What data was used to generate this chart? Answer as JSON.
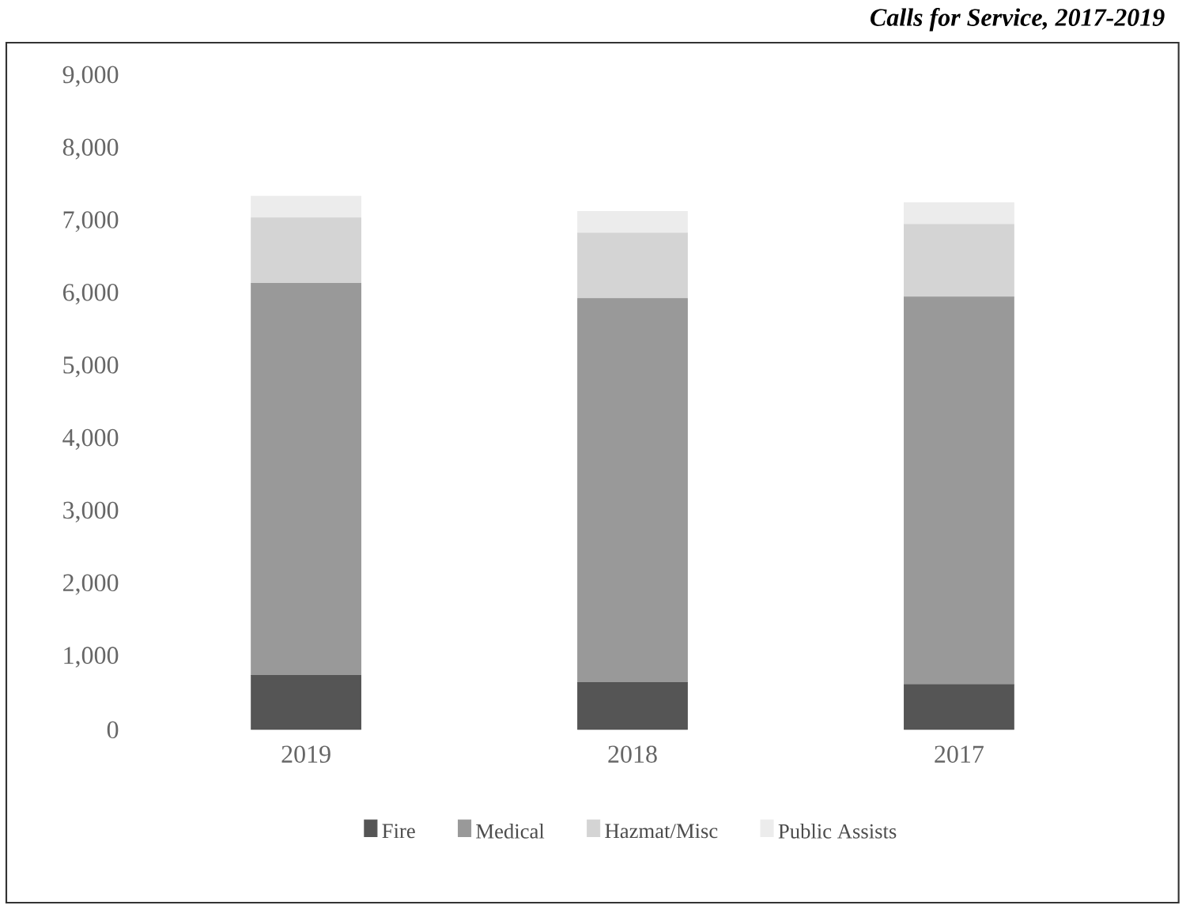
{
  "chart_data": {
    "type": "bar",
    "stacked": true,
    "title": "Calls for Service, 2017-2019",
    "categories": [
      "2019",
      "2018",
      "2017"
    ],
    "series": [
      {
        "name": "Fire",
        "color": "#555555",
        "values": [
          750,
          650,
          620
        ]
      },
      {
        "name": "Medical",
        "color": "#999999",
        "values": [
          5400,
          5290,
          5340
        ]
      },
      {
        "name": "Hazmat/Misc",
        "color": "#d4d4d4",
        "values": [
          900,
          900,
          1000
        ]
      },
      {
        "name": "Public Assists",
        "color": "#ececec",
        "values": [
          300,
          300,
          300
        ]
      }
    ],
    "ylim": [
      0,
      9000
    ],
    "yticks": [
      {
        "value": 0,
        "label": "0"
      },
      {
        "value": 1000,
        "label": "1,000"
      },
      {
        "value": 2000,
        "label": "2,000"
      },
      {
        "value": 3000,
        "label": "3,000"
      },
      {
        "value": 4000,
        "label": "4,000"
      },
      {
        "value": 5000,
        "label": "5,000"
      },
      {
        "value": 6000,
        "label": "6,000"
      },
      {
        "value": 7000,
        "label": "7,000"
      },
      {
        "value": 8000,
        "label": "8,000"
      },
      {
        "value": 9000,
        "label": "9,000"
      }
    ],
    "legend": "bottom"
  }
}
